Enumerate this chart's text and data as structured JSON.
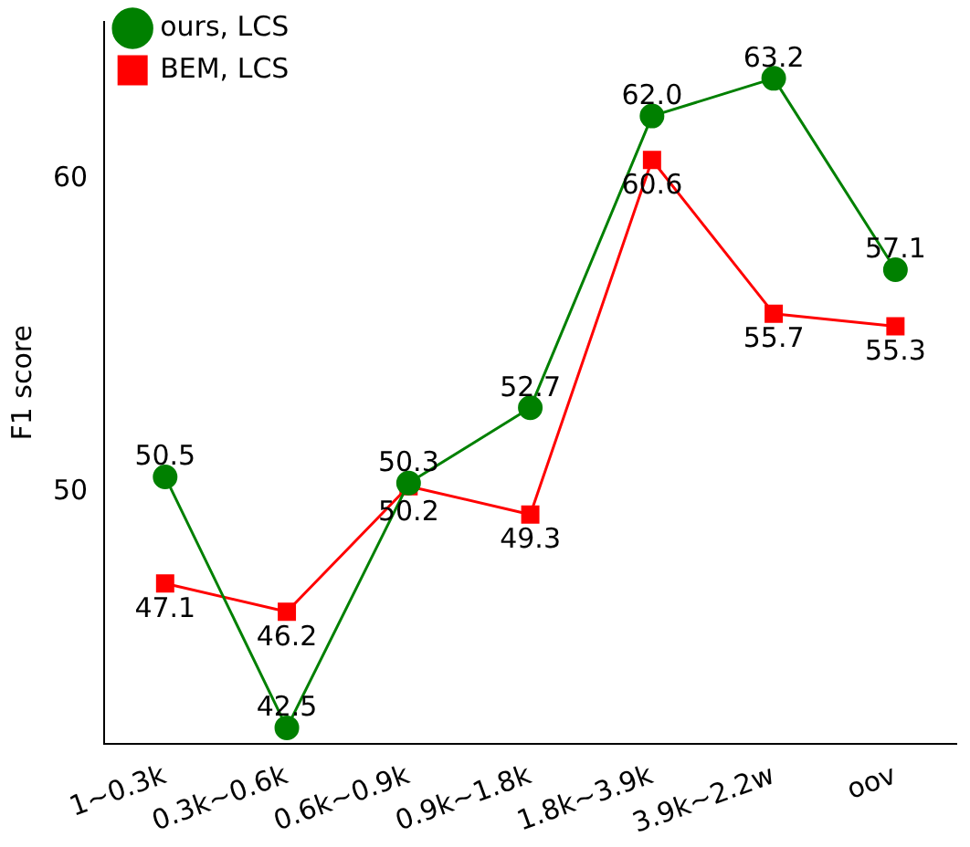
{
  "chart_data": {
    "type": "line",
    "ylabel": "F1 score",
    "categories": [
      "1~0.3k",
      "0.3k~0.6k",
      "0.6k~0.9k",
      "0.9k~1.8k",
      "1.8k~3.9k",
      "3.9k~2.2w",
      "oov"
    ],
    "series": [
      {
        "name": "ours, LCS",
        "color": "#008000",
        "marker": "circle",
        "values": [
          50.5,
          42.5,
          50.3,
          52.7,
          62.0,
          63.2,
          57.1
        ],
        "value_labels": [
          "50.5",
          "42.5",
          "50.3",
          "52.7",
          "62.0",
          "63.2",
          "57.1"
        ]
      },
      {
        "name": "BEM, LCS",
        "color": "#ff0000",
        "marker": "square",
        "values": [
          47.1,
          46.2,
          50.2,
          49.3,
          60.6,
          55.7,
          55.3
        ],
        "value_labels": [
          "47.1",
          "46.2",
          "50.2",
          "49.3",
          "60.6",
          "55.7",
          "55.3"
        ]
      }
    ],
    "ylim": [
      42,
      65
    ],
    "yticks": [
      50,
      60
    ],
    "grid": false,
    "legend": "top left"
  }
}
